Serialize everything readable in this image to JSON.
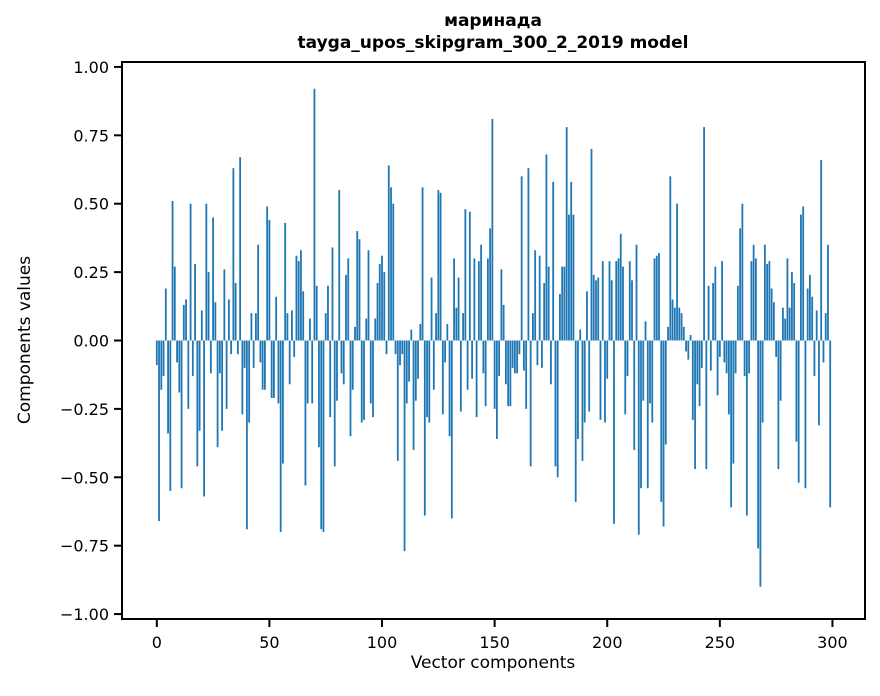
{
  "figure": {
    "background": "#ffffff"
  },
  "chart_data": {
    "type": "bar",
    "title": "маринада",
    "subtitle": "tayga_upos_skipgram_300_2_2019 model",
    "xlabel": "Vector components",
    "ylabel": "Components values",
    "bar_color": "#1f77b4",
    "axis_color": "#000000",
    "grid": false,
    "legend_position": "none",
    "n_components": 300,
    "xlim": [
      -15.45,
      314.45
    ],
    "ylim": [
      -1.018,
      1.018
    ],
    "x_ticks": [
      0,
      50,
      100,
      150,
      200,
      250,
      300
    ],
    "x_tick_labels": [
      "0",
      "50",
      "100",
      "150",
      "200",
      "250",
      "300"
    ],
    "y_ticks": [
      1.0,
      0.75,
      0.5,
      0.25,
      0.0,
      -0.25,
      -0.5,
      -0.75,
      -1.0
    ],
    "y_tick_labels": [
      "1.00",
      "0.75",
      "0.50",
      "0.25",
      "0.00",
      "−0.25",
      "−0.50",
      "−0.75",
      "−1.00"
    ],
    "values": [
      -0.09,
      -0.66,
      -0.18,
      -0.13,
      0.19,
      -0.34,
      -0.55,
      0.51,
      0.27,
      -0.08,
      -0.19,
      -0.54,
      0.13,
      0.15,
      -0.25,
      0.5,
      -0.13,
      0.28,
      -0.46,
      -0.33,
      0.11,
      -0.57,
      0.5,
      0.25,
      -0.12,
      0.45,
      0.14,
      -0.39,
      -0.12,
      -0.33,
      0.26,
      -0.25,
      0.15,
      -0.05,
      0.63,
      0.21,
      -0.05,
      0.67,
      -0.27,
      -0.1,
      -0.69,
      -0.3,
      0.1,
      -0.1,
      0.1,
      0.35,
      -0.08,
      -0.18,
      -0.18,
      0.49,
      0.44,
      -0.21,
      -0.21,
      0.16,
      -0.23,
      -0.7,
      -0.45,
      0.43,
      0.1,
      -0.16,
      0.11,
      -0.06,
      0.31,
      0.29,
      0.33,
      0.18,
      -0.53,
      -0.23,
      0.08,
      -0.23,
      0.92,
      0.2,
      -0.39,
      -0.69,
      -0.7,
      0.1,
      0.2,
      -0.28,
      0.34,
      -0.46,
      -0.22,
      0.55,
      -0.12,
      -0.16,
      0.24,
      0.3,
      -0.35,
      -0.18,
      0.05,
      0.4,
      0.37,
      -0.3,
      -0.29,
      0.08,
      0.33,
      -0.23,
      -0.28,
      0.08,
      0.21,
      0.28,
      0.31,
      0.25,
      -0.05,
      0.64,
      0.56,
      0.5,
      -0.05,
      -0.44,
      -0.09,
      -0.05,
      -0.77,
      -0.23,
      -0.15,
      0.04,
      -0.4,
      -0.22,
      -0.14,
      0.06,
      0.56,
      -0.64,
      -0.28,
      -0.3,
      0.23,
      -0.18,
      0.1,
      0.55,
      0.54,
      -0.27,
      -0.08,
      0.06,
      -0.35,
      -0.65,
      0.3,
      0.12,
      0.23,
      -0.26,
      0.1,
      0.48,
      -0.18,
      0.47,
      -0.14,
      0.3,
      -0.28,
      0.29,
      0.35,
      -0.12,
      -0.24,
      0.3,
      0.41,
      0.81,
      -0.25,
      -0.36,
      -0.13,
      0.26,
      0.13,
      -0.16,
      -0.24,
      -0.24,
      -0.1,
      -0.12,
      -0.12,
      -0.05,
      0.6,
      -0.11,
      -0.25,
      0.63,
      -0.46,
      0.1,
      0.33,
      -0.09,
      0.31,
      -0.1,
      0.21,
      0.68,
      0.27,
      -0.16,
      0.58,
      -0.46,
      -0.5,
      0.17,
      0.27,
      0.27,
      0.78,
      0.46,
      0.58,
      0.46,
      -0.59,
      -0.36,
      0.04,
      -0.44,
      -0.3,
      0.18,
      -0.26,
      0.7,
      0.24,
      0.22,
      0.23,
      -0.29,
      0.29,
      -0.3,
      -0.14,
      0.29,
      0.22,
      -0.67,
      0.29,
      0.3,
      0.39,
      0.27,
      -0.27,
      -0.13,
      0.29,
      0.22,
      -0.4,
      0.35,
      -0.71,
      -0.54,
      -0.22,
      0.07,
      -0.54,
      -0.23,
      -0.3,
      0.3,
      0.31,
      0.32,
      -0.59,
      -0.68,
      -0.38,
      0.05,
      0.6,
      0.15,
      0.12,
      0.5,
      0.12,
      0.1,
      0.05,
      -0.04,
      -0.07,
      0.02,
      -0.29,
      -0.47,
      -0.16,
      -0.24,
      -0.1,
      0.78,
      -0.47,
      0.2,
      -0.11,
      0.21,
      0.27,
      -0.2,
      -0.06,
      0.29,
      -0.08,
      -0.12,
      -0.27,
      -0.61,
      -0.45,
      -0.12,
      0.2,
      0.41,
      0.5,
      -0.13,
      -0.64,
      -0.12,
      0.29,
      0.35,
      0.3,
      -0.76,
      -0.9,
      -0.3,
      0.35,
      0.28,
      0.29,
      0.19,
      0.14,
      -0.06,
      -0.47,
      -0.22,
      0.12,
      0.08,
      0.3,
      0.12,
      0.25,
      0.21,
      -0.37,
      -0.52,
      0.46,
      0.49,
      -0.54,
      0.19,
      0.24,
      0.16,
      -0.13,
      0.11,
      -0.31,
      0.66,
      -0.08,
      0.1,
      0.35,
      -0.61
    ]
  }
}
